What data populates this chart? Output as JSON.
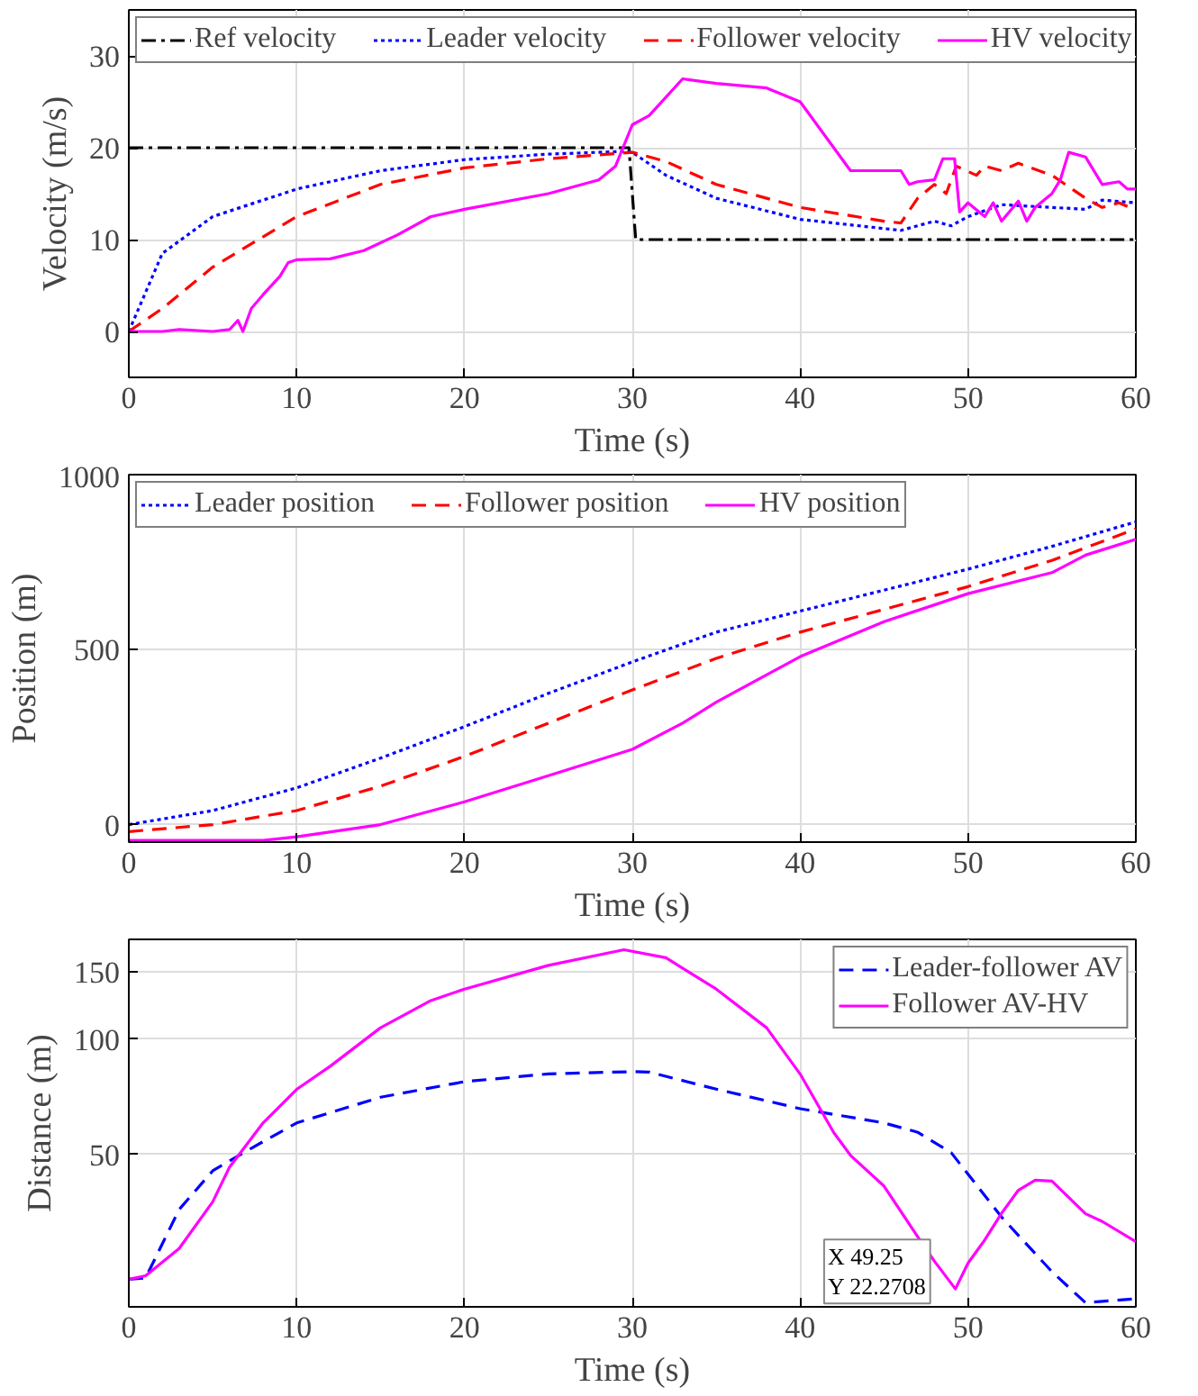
{
  "chart_data": [
    {
      "type": "line",
      "xlabel": "Time (s)",
      "ylabel": "Velocity (m/s)",
      "xlim": [
        0,
        60
      ],
      "ylim": [
        -5,
        35
      ],
      "xticks": [
        0,
        10,
        20,
        30,
        40,
        50,
        60
      ],
      "yticks": [
        0,
        10,
        20,
        30
      ],
      "grid": true,
      "legend": "top",
      "series": [
        {
          "name": "Ref velocity",
          "color": "#000000",
          "line_style": "dashdot",
          "x": [
            0,
            29.8,
            30.2,
            60
          ],
          "values": [
            20,
            20,
            10,
            10
          ]
        },
        {
          "name": "Leader velocity",
          "color": "#0000ff",
          "line_style": "dotted",
          "x": [
            0,
            2,
            5,
            10,
            15,
            20,
            25,
            29.5,
            30,
            32,
            35,
            40,
            45,
            46,
            48,
            49,
            50,
            52,
            55,
            57,
            58,
            60
          ],
          "values": [
            0,
            8.5,
            12.5,
            15.5,
            17.5,
            18.7,
            19.3,
            19.6,
            19.5,
            17,
            14.5,
            12.2,
            11.2,
            11,
            12,
            11.5,
            12.5,
            13.8,
            13.5,
            13.3,
            14.3,
            14
          ]
        },
        {
          "name": "Follower velocity",
          "color": "#ff0000",
          "line_style": "dashed",
          "x": [
            0,
            2,
            5,
            10,
            15,
            20,
            25,
            30,
            32,
            35,
            40,
            45,
            46,
            47,
            48,
            48.7,
            49.3,
            50.5,
            51,
            52,
            53,
            55,
            57,
            58,
            59,
            60
          ],
          "values": [
            0,
            2.5,
            7,
            12.5,
            16,
            17.8,
            18.8,
            19.5,
            18.5,
            16,
            13.5,
            12,
            11.8,
            14.5,
            16,
            15,
            18,
            17,
            18,
            17.5,
            18.3,
            17,
            14.5,
            13.5,
            14,
            13.2
          ]
        },
        {
          "name": "HV velocity",
          "color": "#ff00ff",
          "line_style": "solid",
          "x": [
            0,
            2,
            3,
            5,
            6,
            6.5,
            6.8,
            7.3,
            8,
            9,
            9.5,
            10,
            12,
            14,
            16,
            18,
            20,
            25,
            28,
            29,
            30,
            31,
            33,
            35,
            38,
            40,
            42,
            43,
            46,
            46.5,
            47,
            48,
            48.5,
            49.2,
            49.5,
            50,
            51,
            51.5,
            52,
            53,
            53.5,
            54,
            55,
            55.5,
            56,
            57,
            58,
            59,
            59.5,
            60
          ],
          "values": [
            0,
            0,
            0.2,
            0,
            0.2,
            1.2,
            0,
            2.5,
            4,
            6,
            7.5,
            7.8,
            7.9,
            8.8,
            10.5,
            12.5,
            13.3,
            15,
            16.5,
            18,
            22.5,
            23.5,
            27.5,
            27,
            26.5,
            25,
            20,
            17.5,
            17.5,
            16,
            16.3,
            16.5,
            18.8,
            18.8,
            13,
            14,
            12.5,
            14,
            12,
            14.2,
            12,
            13.5,
            15,
            16.5,
            19.5,
            19,
            16,
            16.3,
            15.5,
            15.5
          ]
        }
      ]
    },
    {
      "type": "line",
      "xlabel": "Time (s)",
      "ylabel": "Position (m)",
      "xlim": [
        0,
        60
      ],
      "ylim": [
        -50,
        1000
      ],
      "xticks": [
        0,
        10,
        20,
        30,
        40,
        50,
        60
      ],
      "yticks": [
        0,
        500,
        1000
      ],
      "grid": true,
      "legend": "top",
      "series": [
        {
          "name": "Leader position",
          "color": "#0000ff",
          "line_style": "dotted",
          "x": [
            0,
            5,
            10,
            15,
            20,
            25,
            30,
            35,
            40,
            45,
            50,
            55,
            60
          ],
          "values": [
            0,
            40,
            105,
            190,
            280,
            375,
            465,
            550,
            610,
            670,
            730,
            795,
            865
          ]
        },
        {
          "name": "Follower position",
          "color": "#ff0000",
          "line_style": "dashed",
          "x": [
            0,
            5,
            10,
            15,
            20,
            25,
            30,
            35,
            40,
            45,
            50,
            55,
            60
          ],
          "values": [
            -20,
            0,
            40,
            110,
            195,
            290,
            385,
            475,
            550,
            615,
            680,
            755,
            845
          ]
        },
        {
          "name": "HV position",
          "color": "#ff00ff",
          "line_style": "solid",
          "x": [
            0,
            8,
            10,
            15,
            20,
            25,
            30,
            33,
            35,
            40,
            42,
            45,
            50,
            55,
            57,
            60
          ],
          "values": [
            -45,
            -45,
            -35,
            0,
            65,
            140,
            215,
            290,
            350,
            480,
            520,
            580,
            660,
            720,
            770,
            815
          ]
        }
      ]
    },
    {
      "type": "line",
      "xlabel": "Time (s)",
      "ylabel": "Distance (m)",
      "log": true,
      "xlim": [
        0,
        60
      ],
      "ylim": [
        20,
        182
      ],
      "xticks": [
        0,
        10,
        20,
        30,
        40,
        50,
        60
      ],
      "yticks": [
        50,
        100,
        150
      ],
      "grid": true,
      "legend": "top right",
      "annotations": [
        {
          "text": "X 49.25\nY 22.2708",
          "x": 49.25,
          "y": 22.2708
        }
      ],
      "series": [
        {
          "name": "Leader-follower AV",
          "color": "#0000ff",
          "line_style": "dashed",
          "x": [
            0,
            1,
            3,
            5,
            7,
            10,
            15,
            20,
            25,
            30,
            31,
            35,
            40,
            45,
            47,
            49,
            52,
            55,
            57,
            60
          ],
          "values": [
            23.6,
            23.8,
            35.9,
            45.3,
            51,
            60.4,
            70.5,
            77.4,
            81.1,
            82.2,
            82,
            74,
            65.8,
            60.4,
            57.1,
            50.5,
            34.3,
            24.7,
            20.5,
            21
          ]
        },
        {
          "name": "Follower AV-HV",
          "color": "#ff00ff",
          "line_style": "solid",
          "x": [
            0,
            1,
            3,
            5,
            6,
            8,
            10,
            12,
            15,
            18,
            20,
            25,
            29.5,
            32,
            35,
            38,
            40,
            42,
            43,
            45,
            47,
            48,
            49.25,
            50,
            51,
            52,
            53,
            54,
            55,
            57,
            58,
            60
          ],
          "values": [
            23.6,
            24.1,
            28.4,
            37.6,
            46.3,
            60.4,
            73.9,
            84.9,
            107,
            126,
            135,
            155.7,
            171,
            163,
            135,
            107,
            81,
            57,
            49.7,
            41.3,
            30.5,
            26.3,
            22.2708,
            26,
            29.9,
            35.1,
            40.3,
            42.8,
            42.6,
            35,
            33.4,
            29.6
          ]
        }
      ]
    }
  ]
}
